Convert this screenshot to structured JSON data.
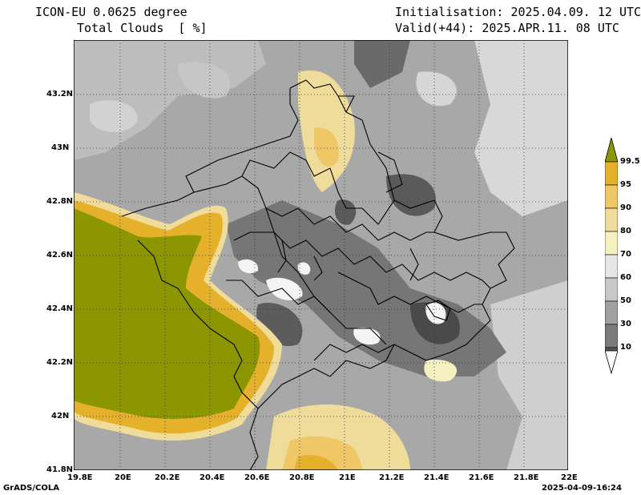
{
  "header": {
    "left_line1": "ICON-EU 0.0625 degree",
    "left_line2": "Total Clouds  [ %]",
    "right_line1": "Initialisation: 2025.04.09. 12 UTC",
    "right_line2": "Valid(+44): 2025.APR.11. 08 UTC"
  },
  "footer": {
    "credit": "GrADS/COLA",
    "timestamp": "2025-04-09-16:24"
  },
  "axes": {
    "lat_labels": [
      "43.2N",
      "43N",
      "42.8N",
      "42.6N",
      "42.4N",
      "42.2N",
      "42N",
      "41.8N"
    ],
    "lon_labels": [
      "19.8E",
      "20E",
      "20.2E",
      "20.4E",
      "20.6E",
      "20.8E",
      "21E",
      "21.2E",
      "21.4E",
      "21.6E",
      "21.8E",
      "22E"
    ]
  },
  "colorbar": {
    "levels": [
      "99.5",
      "95",
      "90",
      "80",
      "70",
      "60",
      "50",
      "30",
      "10"
    ],
    "colors": [
      "#8c9600",
      "#e5b02a",
      "#efc766",
      "#f0dc9a",
      "#f4f0c0",
      "#e6e6e6",
      "#c8c8c8",
      "#a0a0a0",
      "#7a7a7a",
      "#555555",
      "#ffffff"
    ]
  }
}
